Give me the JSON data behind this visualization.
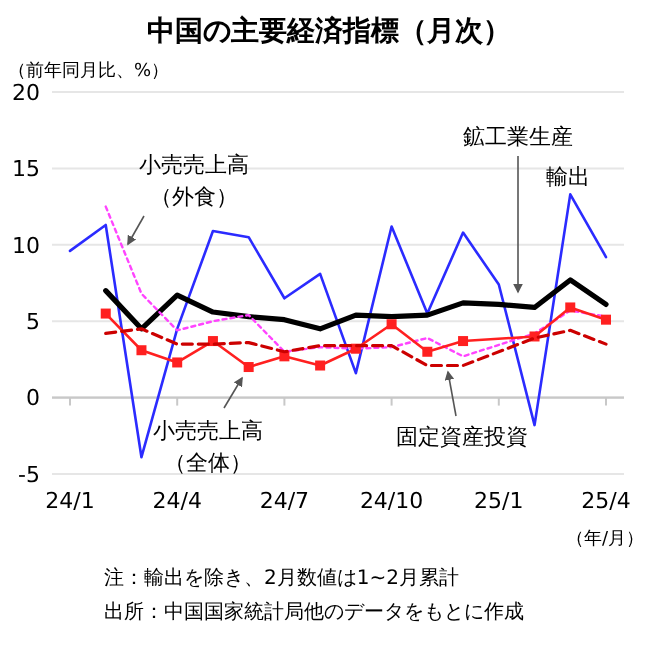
{
  "chart_data": {
    "type": "line",
    "title": "中国の主要経済指標（月次）",
    "ylabel": "（前年同月比、%）",
    "xlabel": "（年/月）",
    "categories": [
      "24/1",
      null,
      null,
      "24/4",
      null,
      null,
      "24/7",
      null,
      null,
      "24/10",
      null,
      null,
      "25/1",
      null,
      null,
      "25/4"
    ],
    "ylim": [
      -5,
      20
    ],
    "yticks": [
      -5,
      0,
      5,
      10,
      15,
      20
    ],
    "grid": "y",
    "series": [
      {
        "name": "輸出",
        "color": "#2b2bff",
        "line_style": "solid",
        "marker": "none",
        "values": [
          9.6,
          11.3,
          -3.9,
          4.5,
          10.9,
          10.5,
          6.5,
          8.1,
          1.6,
          11.2,
          5.5,
          10.8,
          7.4,
          -1.8,
          13.3,
          9.2
        ]
      },
      {
        "name": "鉱工業生産",
        "color": "#000000",
        "line_style": "solid",
        "marker": "none",
        "values": [
          null,
          7.0,
          4.5,
          6.7,
          5.6,
          5.3,
          5.1,
          4.5,
          5.4,
          5.3,
          5.4,
          6.2,
          6.1,
          5.9,
          7.7,
          6.1
        ]
      },
      {
        "name": "小売売上高（外食）",
        "color": "#ff44ff",
        "line_style": "dotted",
        "marker": "none",
        "values": [
          null,
          12.5,
          6.8,
          4.4,
          5.0,
          5.4,
          3.0,
          3.3,
          3.2,
          3.3,
          3.9,
          2.7,
          null,
          4.2,
          5.7,
          5.3
        ]
      },
      {
        "name": "小売売上高（全体）",
        "color": "#ff2020",
        "line_style": "solid",
        "marker": "square",
        "values": [
          null,
          5.5,
          3.1,
          2.3,
          3.7,
          2.0,
          2.7,
          2.1,
          3.2,
          4.8,
          3.0,
          3.7,
          null,
          4.0,
          5.9,
          5.1
        ]
      },
      {
        "name": "固定資産投資",
        "color": "#cc0000",
        "line_style": "dashed",
        "marker": "none",
        "values": [
          null,
          4.2,
          4.5,
          3.5,
          3.5,
          3.6,
          3.0,
          3.4,
          3.4,
          3.4,
          2.1,
          2.1,
          null,
          3.9,
          4.4,
          3.5
        ]
      }
    ],
    "annotations": [
      "注：輸出を除き、2月数値は1~2月累計",
      "出所：中国国家統計局他のデータをもとに作成"
    ]
  }
}
